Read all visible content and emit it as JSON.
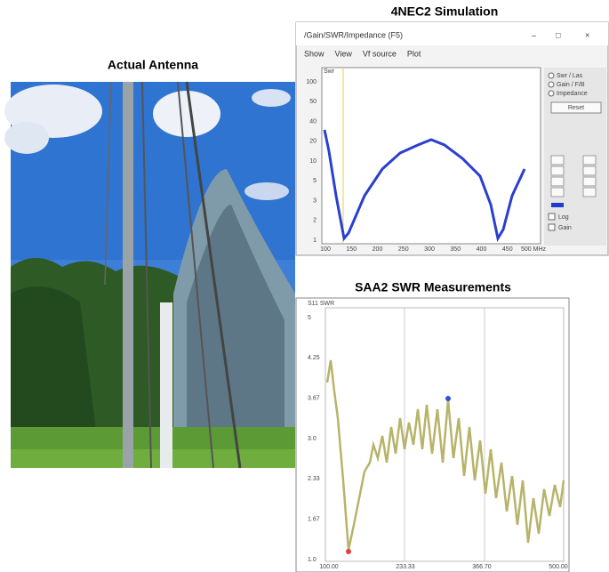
{
  "titles": {
    "photo": "Actual Antenna",
    "nec": "4NEC2 Simulation",
    "saa": "SAA2 SWR Measurements"
  },
  "nec_window": {
    "title": "/Gain/SWR/Impedance (F5)",
    "menu": [
      "Show",
      "View",
      "Vf source",
      "Plot"
    ],
    "options": [
      "Swr / Las",
      "Gain / F/B",
      "Impedance"
    ],
    "button": "Reset",
    "checks": [
      "Log",
      "Gain"
    ],
    "y_label": "Swr",
    "y_ticks": [
      "100",
      "50",
      "40",
      "20",
      "10",
      "5",
      "3",
      "2",
      "1"
    ],
    "x_ticks": [
      "100",
      "150",
      "200",
      "250",
      "300",
      "350",
      "400",
      "450",
      "500 MHz"
    ]
  },
  "saa_chart": {
    "y_label": "S11 SWR",
    "y_ticks": [
      "5",
      "4.25",
      "3.67",
      "3.0",
      "2.33",
      "1.67",
      "1.0"
    ],
    "x_ticks": [
      "100.00",
      "233.33",
      "366.70",
      "500.00"
    ]
  }
}
